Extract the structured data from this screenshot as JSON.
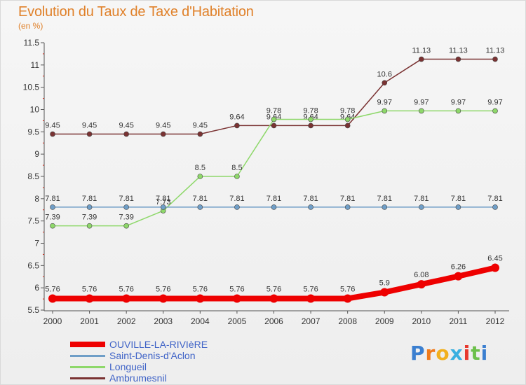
{
  "header": {
    "title": "Evolution du Taux de Taxe d'Habitation",
    "unit": "(en %)"
  },
  "chart_data": {
    "type": "line",
    "title": "Evolution du Taux de Taxe d'Habitation",
    "ylabel": "(en %)",
    "xlabel": "",
    "x": [
      "2000",
      "2001",
      "2002",
      "2003",
      "2004",
      "2005",
      "2006",
      "2007",
      "2008",
      "2009",
      "2010",
      "2011",
      "2012"
    ],
    "ylim": [
      5.5,
      11.5
    ],
    "yticks": [
      "5.5",
      "6",
      "6.5",
      "7",
      "7.5",
      "8",
      "8.5",
      "9",
      "9.5",
      "10",
      "10.5",
      "11",
      "11.5"
    ],
    "grid": false,
    "legend_position": "bottom-left",
    "series": [
      {
        "name": "OUVILLE-LA-RIVIèRE",
        "color": "#ee0000",
        "values": [
          5.76,
          5.76,
          5.76,
          5.76,
          5.76,
          5.76,
          5.76,
          5.76,
          5.76,
          5.9,
          6.08,
          6.26,
          6.45
        ],
        "labels": [
          "5.76",
          "5.76",
          "5.76",
          "5.76",
          "5.76",
          "5.76",
          "5.76",
          "5.76",
          "5.76",
          "5.9",
          "6.08",
          "6.26",
          "6.45"
        ]
      },
      {
        "name": "Saint-Denis-d'Aclon",
        "color": "#6f9ec7",
        "values": [
          7.81,
          7.81,
          7.81,
          7.81,
          7.81,
          7.81,
          7.81,
          7.81,
          7.81,
          7.81,
          7.81,
          7.81,
          7.81
        ],
        "labels": [
          "7.81",
          "7.81",
          "7.81",
          "7.81",
          "7.81",
          "7.81",
          "7.81",
          "7.81",
          "7.81",
          "7.81",
          "7.81",
          "7.81",
          "7.81"
        ]
      },
      {
        "name": "Longueil",
        "color": "#8ed86a",
        "values": [
          7.39,
          7.39,
          7.39,
          7.73,
          8.5,
          8.5,
          9.78,
          9.78,
          9.78,
          9.97,
          9.97,
          9.97,
          9.97
        ],
        "labels": [
          "7.39",
          "7.39",
          "7.39",
          "7.73",
          "8.5",
          "8.5",
          "9.78",
          "9.78",
          "9.78",
          "9.97",
          "9.97",
          "9.97",
          "9.97"
        ]
      },
      {
        "name": "Ambrumesnil",
        "color": "#7a3232",
        "values": [
          9.45,
          9.45,
          9.45,
          9.45,
          9.45,
          9.64,
          9.64,
          9.64,
          9.64,
          10.6,
          11.13,
          11.13,
          11.13
        ],
        "labels": [
          "9.45",
          "9.45",
          "9.45",
          "9.45",
          "9.45",
          "9.64",
          "9.64",
          "9.64",
          "9.64",
          "10.6",
          "11.13",
          "11.13",
          "11.13"
        ]
      }
    ]
  },
  "logo": {
    "letters": [
      "P",
      "r",
      "o",
      "x",
      "i",
      "t",
      "i"
    ],
    "colors": [
      "#3b7fd0",
      "#f07a1a",
      "#f2b01e",
      "#3bb0e0",
      "#e7392e",
      "#6cc04a",
      "#3b7fd0"
    ]
  }
}
